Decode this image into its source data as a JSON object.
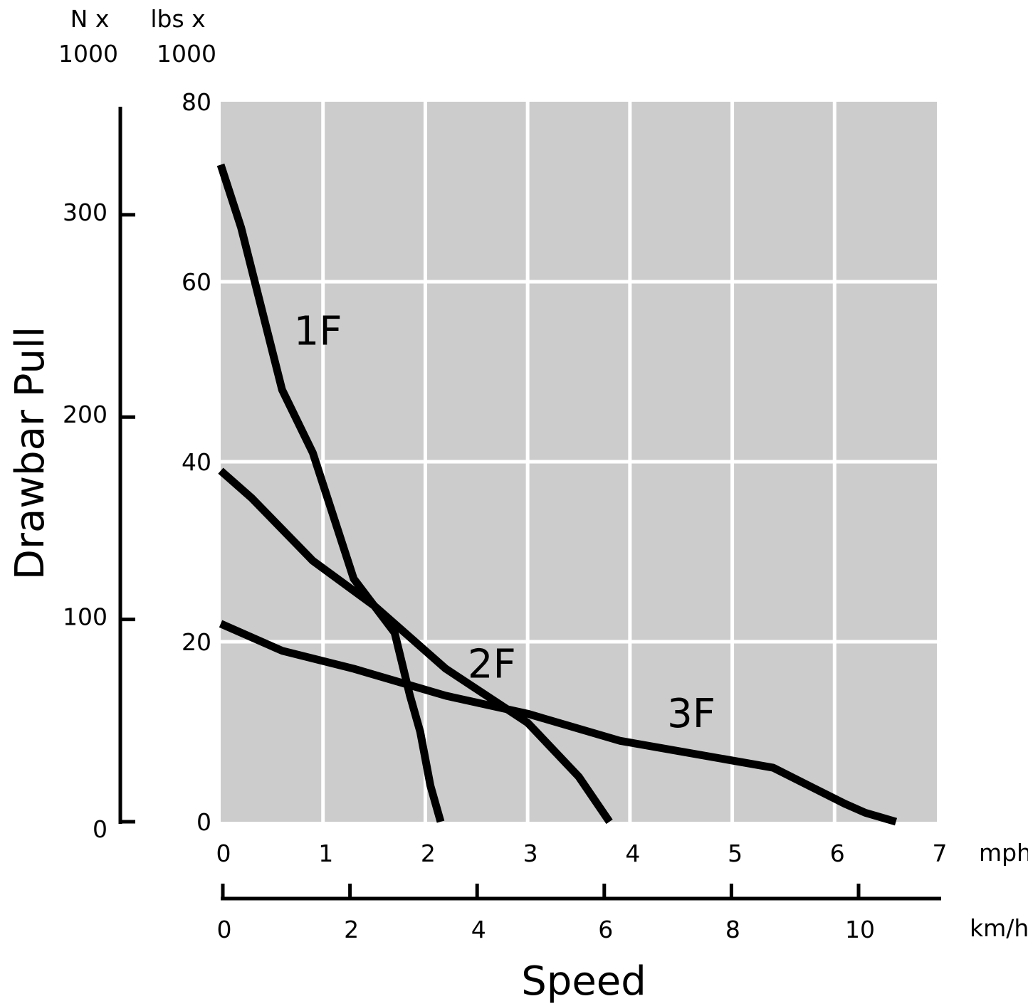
{
  "chart_data": {
    "type": "line",
    "title": "",
    "xlabel": "Speed",
    "ylabel": "Drawbar Pull",
    "x_units": {
      "mph": "mph",
      "kmh": "km/h"
    },
    "y_units": {
      "N": [
        "N x",
        "1000"
      ],
      "lbs": [
        "lbs x",
        "1000"
      ]
    },
    "xlim_mph": [
      0,
      7
    ],
    "ylim_lbs": [
      0,
      80
    ],
    "grid": true,
    "x_ticks_mph": [
      "0",
      "1",
      "2",
      "3",
      "4",
      "5",
      "6",
      "7"
    ],
    "x_ticks_kmh": [
      "0",
      "2",
      "4",
      "6",
      "8",
      "10"
    ],
    "y_ticks_lbs": [
      "0",
      "20",
      "40",
      "60",
      "80"
    ],
    "y_ticks_N": [
      "0",
      "100",
      "200",
      "300"
    ],
    "series": [
      {
        "name": "1F",
        "x": [
          0,
          0.2,
          0.6,
          0.9,
          1.3,
          1.7,
          1.85,
          1.95,
          2.05,
          2.15
        ],
        "y": [
          73,
          66,
          48,
          41,
          27,
          21,
          14,
          10,
          4,
          0
        ]
      },
      {
        "name": "2F",
        "x": [
          0,
          0.3,
          0.9,
          1.5,
          2.2,
          3.0,
          3.5,
          3.8
        ],
        "y": [
          39,
          36,
          29,
          24,
          17,
          11,
          5,
          0
        ]
      },
      {
        "name": "3F",
        "x": [
          0,
          0.6,
          1.3,
          2.2,
          3.0,
          3.9,
          5.4,
          6.1,
          6.3,
          6.6
        ],
        "y": [
          22,
          19,
          17,
          14,
          12,
          9,
          6,
          2,
          1,
          0
        ]
      }
    ]
  }
}
